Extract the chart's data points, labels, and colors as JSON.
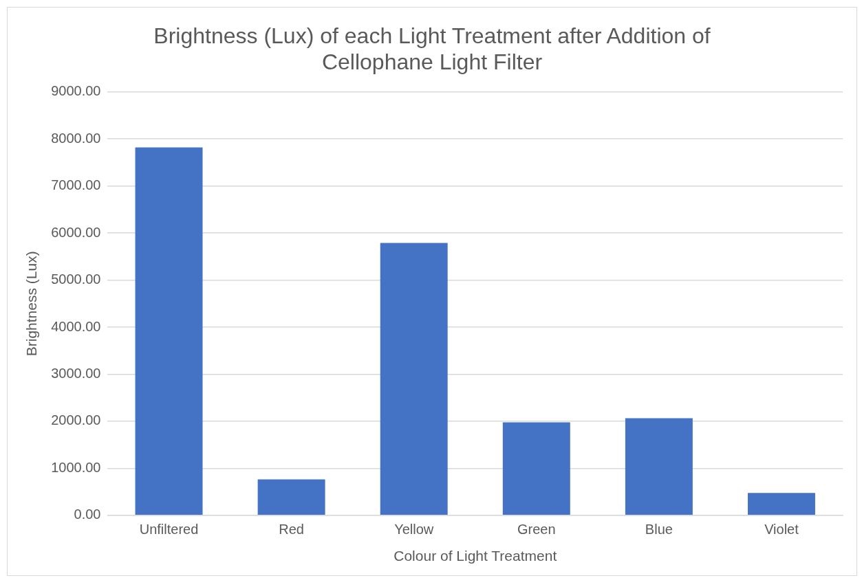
{
  "chart_data": {
    "type": "bar",
    "title": "Brightness (Lux) of each Light Treatment after Addition of Cellophane Light Filter",
    "xlabel": "Colour of Light Treatment",
    "ylabel": "Brightness (Lux)",
    "categories": [
      "Unfiltered",
      "Red",
      "Yellow",
      "Green",
      "Blue",
      "Violet"
    ],
    "values": [
      7820,
      765,
      5790,
      1975,
      2065,
      475
    ],
    "color": "#4472c4",
    "ylim": [
      0,
      9000
    ],
    "yticks": [
      {
        "value": 0,
        "label": "0.00"
      },
      {
        "value": 1000,
        "label": "1000.00"
      },
      {
        "value": 2000,
        "label": "2000.00"
      },
      {
        "value": 3000,
        "label": "3000.00"
      },
      {
        "value": 4000,
        "label": "4000.00"
      },
      {
        "value": 5000,
        "label": "5000.00"
      },
      {
        "value": 6000,
        "label": "6000.00"
      },
      {
        "value": 7000,
        "label": "7000.00"
      },
      {
        "value": 8000,
        "label": "8000.00"
      },
      {
        "value": 9000,
        "label": "9000.00"
      }
    ],
    "grid": "y",
    "legend": false
  }
}
